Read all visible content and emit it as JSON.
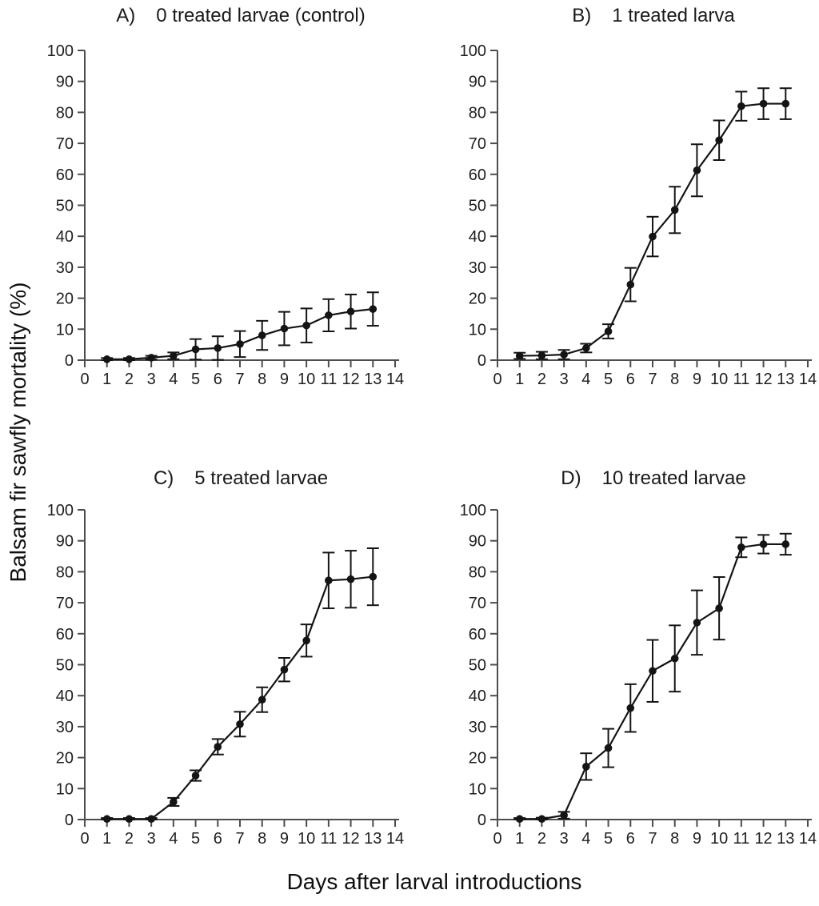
{
  "figure": {
    "xlabel": "Days after larval introductions",
    "ylabel": "Balsam fir sawfly mortality (%)",
    "background_color": "#ffffff",
    "axis_color": "#4d4d4d",
    "data_color": "#141414",
    "text_color": "#1f1f1f"
  },
  "chart_data": [
    {
      "type": "line",
      "panel_letter": "A)",
      "title": "0 treated larvae (control)",
      "error_bars": true,
      "marker": "filled-circle",
      "x": [
        1,
        2,
        3,
        4,
        5,
        6,
        7,
        8,
        9,
        10,
        11,
        12,
        13
      ],
      "values": [
        0.3,
        0.3,
        0.8,
        1.4,
        3.5,
        3.9,
        5.2,
        8.0,
        10.2,
        11.2,
        14.5,
        15.7,
        16.5
      ],
      "errors": [
        0.4,
        0.4,
        0.6,
        1.1,
        3.3,
        3.8,
        4.2,
        4.7,
        5.4,
        5.5,
        5.2,
        5.5,
        5.4
      ],
      "xlim": [
        0,
        14
      ],
      "ylim": [
        0,
        100
      ],
      "xticks": [
        0,
        1,
        2,
        3,
        4,
        5,
        6,
        7,
        8,
        9,
        10,
        11,
        12,
        13,
        14
      ],
      "yticks": [
        0,
        10,
        20,
        30,
        40,
        50,
        60,
        70,
        80,
        90,
        100
      ],
      "grid": false,
      "legend": "none"
    },
    {
      "type": "line",
      "panel_letter": "B)",
      "title": "1 treated larva",
      "error_bars": true,
      "marker": "filled-circle",
      "x": [
        1,
        2,
        3,
        4,
        5,
        6,
        7,
        8,
        9,
        10,
        11,
        12,
        13
      ],
      "values": [
        1.4,
        1.5,
        1.8,
        3.9,
        9.3,
        24.4,
        39.9,
        48.5,
        61.3,
        71.0,
        82.0,
        82.8,
        82.8
      ],
      "errors": [
        1.0,
        1.2,
        1.5,
        1.4,
        2.3,
        5.4,
        6.4,
        7.5,
        8.4,
        6.4,
        4.7,
        5.0,
        5.0
      ],
      "xlim": [
        0,
        14
      ],
      "ylim": [
        0,
        100
      ],
      "xticks": [
        0,
        1,
        2,
        3,
        4,
        5,
        6,
        7,
        8,
        9,
        10,
        11,
        12,
        13,
        14
      ],
      "yticks": [
        0,
        10,
        20,
        30,
        40,
        50,
        60,
        70,
        80,
        90,
        100
      ],
      "grid": false,
      "legend": "none"
    },
    {
      "type": "line",
      "panel_letter": "C)",
      "title": "5 treated larvae",
      "error_bars": true,
      "marker": "filled-circle",
      "x": [
        1,
        2,
        3,
        4,
        5,
        6,
        7,
        8,
        9,
        10,
        11,
        12,
        13
      ],
      "values": [
        0.2,
        0.2,
        0.2,
        5.7,
        14.2,
        23.5,
        30.8,
        38.7,
        48.4,
        57.8,
        77.2,
        77.6,
        78.4
      ],
      "errors": [
        0.3,
        0.3,
        0.3,
        1.3,
        1.7,
        2.5,
        4.0,
        4.0,
        3.8,
        5.2,
        9.0,
        9.2,
        9.2
      ],
      "xlim": [
        0,
        14
      ],
      "ylim": [
        0,
        100
      ],
      "xticks": [
        0,
        1,
        2,
        3,
        4,
        5,
        6,
        7,
        8,
        9,
        10,
        11,
        12,
        13,
        14
      ],
      "yticks": [
        0,
        10,
        20,
        30,
        40,
        50,
        60,
        70,
        80,
        90,
        100
      ],
      "grid": false,
      "legend": "none"
    },
    {
      "type": "line",
      "panel_letter": "D)",
      "title": "10 treated larvae",
      "error_bars": true,
      "marker": "filled-circle",
      "x": [
        1,
        2,
        3,
        4,
        5,
        6,
        7,
        8,
        9,
        10,
        11,
        12,
        13
      ],
      "values": [
        0.2,
        0.2,
        1.4,
        17.1,
        23.1,
        36.0,
        48.0,
        52.0,
        63.6,
        68.2,
        87.9,
        88.9,
        88.9
      ],
      "errors": [
        0.3,
        0.4,
        1.1,
        4.3,
        6.2,
        7.7,
        10.0,
        10.7,
        10.4,
        10.1,
        3.2,
        3.0,
        3.4
      ],
      "xlim": [
        0,
        14
      ],
      "ylim": [
        0,
        100
      ],
      "xticks": [
        0,
        1,
        2,
        3,
        4,
        5,
        6,
        7,
        8,
        9,
        10,
        11,
        12,
        13,
        14
      ],
      "yticks": [
        0,
        10,
        20,
        30,
        40,
        50,
        60,
        70,
        80,
        90,
        100
      ],
      "grid": false,
      "legend": "none"
    }
  ]
}
